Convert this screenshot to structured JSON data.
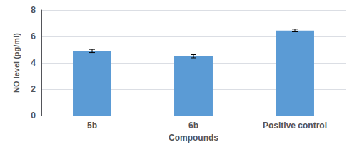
{
  "chart_data": {
    "type": "bar",
    "categories": [
      "5b",
      "6b",
      "Positive control"
    ],
    "values": [
      4.9,
      4.5,
      6.45
    ],
    "errors": [
      0.12,
      0.12,
      0.1
    ],
    "color": "#5b9bd5",
    "xlabel": "Compounds",
    "ylabel": "NO level (pg/ml)",
    "ylim": [
      0,
      8
    ],
    "yticks": [
      0,
      2,
      4,
      6,
      8
    ],
    "grid": true
  }
}
